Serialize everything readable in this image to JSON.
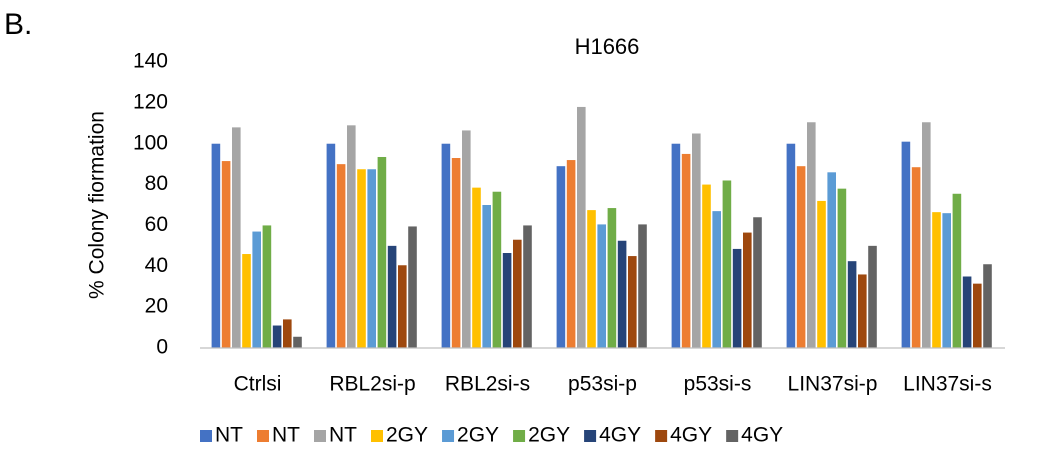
{
  "panel_label": "B.",
  "chart_data": {
    "type": "bar",
    "title": "H1666",
    "y_label": "% Colony fiormation",
    "categories": [
      "Ctrlsi",
      "RBL2si-p",
      "RBL2si-s",
      "p53si-p",
      "p53si-s",
      "LIN37si-p",
      "LIN37si-s"
    ],
    "series": [
      {
        "name": "NT",
        "color": "#4472c4",
        "values": [
          100,
          100,
          100,
          89,
          100,
          100,
          101
        ]
      },
      {
        "name": "NT",
        "color": "#ed7d31",
        "values": [
          91.5,
          90,
          93,
          92,
          95,
          89,
          88.5
        ]
      },
      {
        "name": "NT",
        "color": "#a5a5a5",
        "values": [
          108,
          109,
          106.5,
          118,
          105,
          110.5,
          110.5
        ]
      },
      {
        "name": "2GY",
        "color": "#ffc000",
        "values": [
          46,
          87.5,
          78.5,
          67.5,
          80,
          72,
          66.5
        ]
      },
      {
        "name": "2GY",
        "color": "#5b9bd5",
        "values": [
          57,
          87.5,
          70,
          60.5,
          67,
          86,
          66
        ]
      },
      {
        "name": "2GY",
        "color": "#70ad47",
        "values": [
          60,
          93.5,
          76.5,
          68.5,
          82,
          78,
          75.5
        ]
      },
      {
        "name": "4GY",
        "color": "#264478",
        "values": [
          11,
          50,
          46.5,
          52.5,
          48.5,
          42.5,
          35
        ]
      },
      {
        "name": "4GY",
        "color": "#9e480e",
        "values": [
          14,
          40.5,
          53,
          45,
          56.5,
          36,
          31.5
        ]
      },
      {
        "name": "4GY",
        "color": "#636363",
        "values": [
          5.5,
          59.5,
          60,
          60.5,
          64,
          50,
          41
        ]
      }
    ],
    "ylim": [
      0,
      140
    ],
    "yticks": [
      0,
      20,
      40,
      60,
      80,
      100,
      120,
      140
    ],
    "grid": false,
    "legend": "bottom"
  }
}
